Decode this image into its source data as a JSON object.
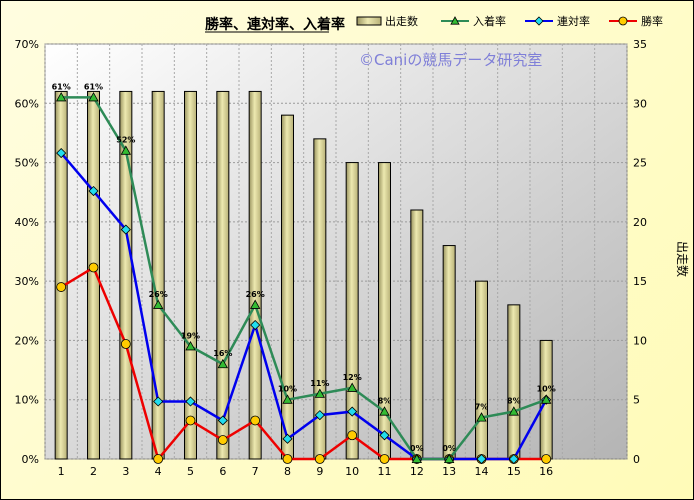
{
  "chart_data": {
    "type": "bar+line",
    "title": "勝率、連対率、入着率",
    "watermark": "©Caniの競馬データ研究室",
    "categories": [
      "1",
      "2",
      "3",
      "4",
      "5",
      "6",
      "7",
      "8",
      "9",
      "10",
      "11",
      "12",
      "13",
      "14",
      "15",
      "16"
    ],
    "y_left": {
      "range": [
        0,
        70
      ],
      "ticks": [
        "0%",
        "10%",
        "20%",
        "30%",
        "40%",
        "50%",
        "60%",
        "70%"
      ]
    },
    "y_right": {
      "label": "出走数",
      "range": [
        0,
        35
      ],
      "ticks": [
        "0",
        "5",
        "10",
        "15",
        "20",
        "25",
        "30",
        "35"
      ]
    },
    "grid": true,
    "legend_position": "top",
    "bars": {
      "name": "出走数",
      "axis": "right",
      "values": [
        31,
        31,
        31,
        31,
        31,
        31,
        31,
        29,
        27,
        25,
        25,
        21,
        18,
        15,
        13,
        10
      ],
      "color": "#ede9b0"
    },
    "series": [
      {
        "name": "入着率",
        "axis": "left",
        "color": "#2e8b57",
        "marker": "triangle",
        "marker_color": "#33bb33",
        "values": [
          61,
          61,
          52,
          26,
          19,
          16,
          26,
          10,
          11,
          12,
          8,
          0,
          0,
          7,
          8,
          10
        ],
        "labels": [
          "61%",
          "61%",
          "52%",
          "26%",
          "19%",
          "16%",
          "26%",
          "10%",
          "11%",
          "12%",
          "8%",
          "0%",
          "0%",
          "7%",
          "8%",
          "10%"
        ]
      },
      {
        "name": "連対率",
        "axis": "left",
        "color": "#0000ee",
        "marker": "diamond",
        "marker_color": "#22ddee",
        "values": [
          51.6,
          45.2,
          38.7,
          9.7,
          9.7,
          6.5,
          22.6,
          3.4,
          7.4,
          8,
          4,
          0,
          0,
          0,
          0,
          10
        ]
      },
      {
        "name": "勝率",
        "axis": "left",
        "color": "#ee0000",
        "marker": "circle",
        "marker_color": "#ffcc00",
        "values": [
          29,
          32.3,
          19.4,
          0,
          6.5,
          3.2,
          6.5,
          0,
          0,
          4,
          0,
          0,
          0,
          0,
          0,
          0
        ]
      }
    ]
  }
}
